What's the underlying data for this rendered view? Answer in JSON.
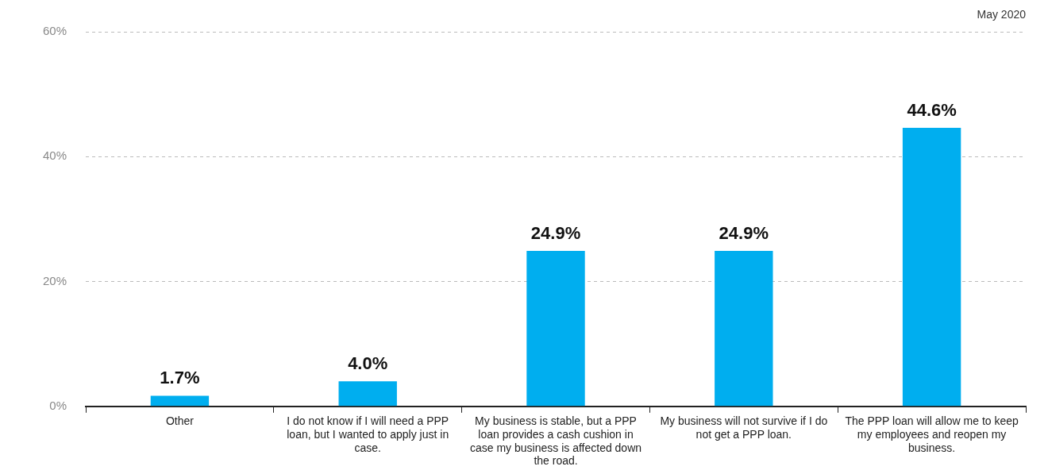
{
  "chart_data": {
    "type": "bar",
    "categories": [
      "Other",
      "I do not know if I will need a PPP loan, but I wanted to apply just in case.",
      "My business is stable, but a PPP loan provides a cash cushion in case my business is affected down the road.",
      "My business will not survive if I do not get a PPP loan.",
      "The PPP loan will allow me to keep my employees and reopen my business."
    ],
    "values": [
      1.7,
      4.0,
      24.9,
      24.9,
      44.6
    ],
    "value_labels": [
      "1.7%",
      "4.0%",
      "24.9%",
      "24.9%",
      "44.6%"
    ],
    "color": "#00aeef",
    "ylim": [
      0,
      60
    ],
    "yticks": [
      {
        "value": 0,
        "label": "0%"
      },
      {
        "value": 20,
        "label": "20%"
      },
      {
        "value": 40,
        "label": "40%"
      },
      {
        "value": 60,
        "label": "60%"
      }
    ],
    "grid": "y",
    "annotations": [
      "May 2020"
    ]
  }
}
